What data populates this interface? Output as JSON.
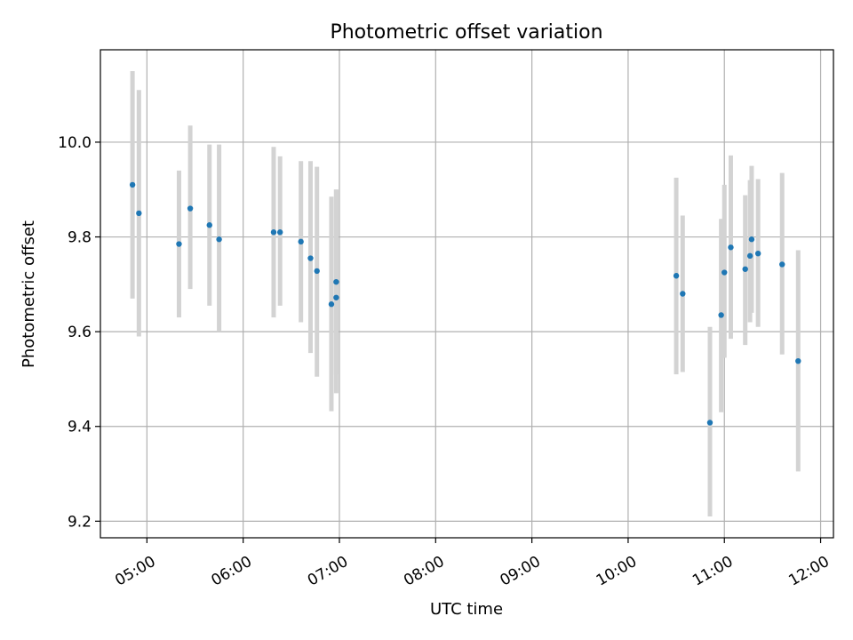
{
  "chart_data": {
    "type": "scatter",
    "title": "Photometric offset variation",
    "xlabel": "UTC time",
    "ylabel": "Photometric offset",
    "x_ticks": [
      "05:00",
      "06:00",
      "07:00",
      "08:00",
      "09:00",
      "10:00",
      "11:00",
      "12:00"
    ],
    "y_ticks": [
      "9.2",
      "9.4",
      "9.6",
      "9.8",
      "10.0"
    ],
    "xlim": [
      "04:31",
      "12:08"
    ],
    "ylim": [
      9.165,
      10.195
    ],
    "grid": true,
    "colors": {
      "point": "#1f77b4",
      "errorbar": "#d3d3d3",
      "grid": "#b0b0b0"
    },
    "points": [
      {
        "t": "04:51",
        "y": 9.91,
        "lo": 9.67,
        "hi": 10.15
      },
      {
        "t": "04:55",
        "y": 9.85,
        "lo": 9.59,
        "hi": 10.11
      },
      {
        "t": "05:20",
        "y": 9.785,
        "lo": 9.63,
        "hi": 9.94
      },
      {
        "t": "05:27",
        "y": 9.86,
        "lo": 9.69,
        "hi": 10.035
      },
      {
        "t": "05:39",
        "y": 9.825,
        "lo": 9.655,
        "hi": 9.995
      },
      {
        "t": "05:45",
        "y": 9.795,
        "lo": 9.6,
        "hi": 9.995
      },
      {
        "t": "06:19",
        "y": 9.81,
        "lo": 9.63,
        "hi": 9.99
      },
      {
        "t": "06:23",
        "y": 9.81,
        "lo": 9.655,
        "hi": 9.97
      },
      {
        "t": "06:36",
        "y": 9.79,
        "lo": 9.62,
        "hi": 9.96
      },
      {
        "t": "06:42",
        "y": 9.755,
        "lo": 9.555,
        "hi": 9.96
      },
      {
        "t": "06:46",
        "y": 9.728,
        "lo": 9.505,
        "hi": 9.948
      },
      {
        "t": "06:55",
        "y": 9.658,
        "lo": 9.432,
        "hi": 9.885
      },
      {
        "t": "06:58",
        "y": 9.705,
        "lo": 9.51,
        "hi": 9.9
      },
      {
        "t": "06:58",
        "y": 9.672,
        "lo": 9.47,
        "hi": 9.9
      },
      {
        "t": "10:30",
        "y": 9.718,
        "lo": 9.51,
        "hi": 9.925
      },
      {
        "t": "10:34",
        "y": 9.68,
        "lo": 9.515,
        "hi": 9.845
      },
      {
        "t": "10:51",
        "y": 9.408,
        "lo": 9.21,
        "hi": 9.61
      },
      {
        "t": "10:58",
        "y": 9.635,
        "lo": 9.43,
        "hi": 9.838
      },
      {
        "t": "11:00",
        "y": 9.725,
        "lo": 9.545,
        "hi": 9.91
      },
      {
        "t": "11:04",
        "y": 9.778,
        "lo": 9.585,
        "hi": 9.972
      },
      {
        "t": "11:13",
        "y": 9.732,
        "lo": 9.572,
        "hi": 9.888
      },
      {
        "t": "11:16",
        "y": 9.76,
        "lo": 9.62,
        "hi": 9.92
      },
      {
        "t": "11:17",
        "y": 9.795,
        "lo": 9.64,
        "hi": 9.95
      },
      {
        "t": "11:21",
        "y": 9.765,
        "lo": 9.61,
        "hi": 9.922
      },
      {
        "t": "11:36",
        "y": 9.742,
        "lo": 9.552,
        "hi": 9.935
      },
      {
        "t": "11:46",
        "y": 9.538,
        "lo": 9.305,
        "hi": 9.772
      }
    ]
  }
}
